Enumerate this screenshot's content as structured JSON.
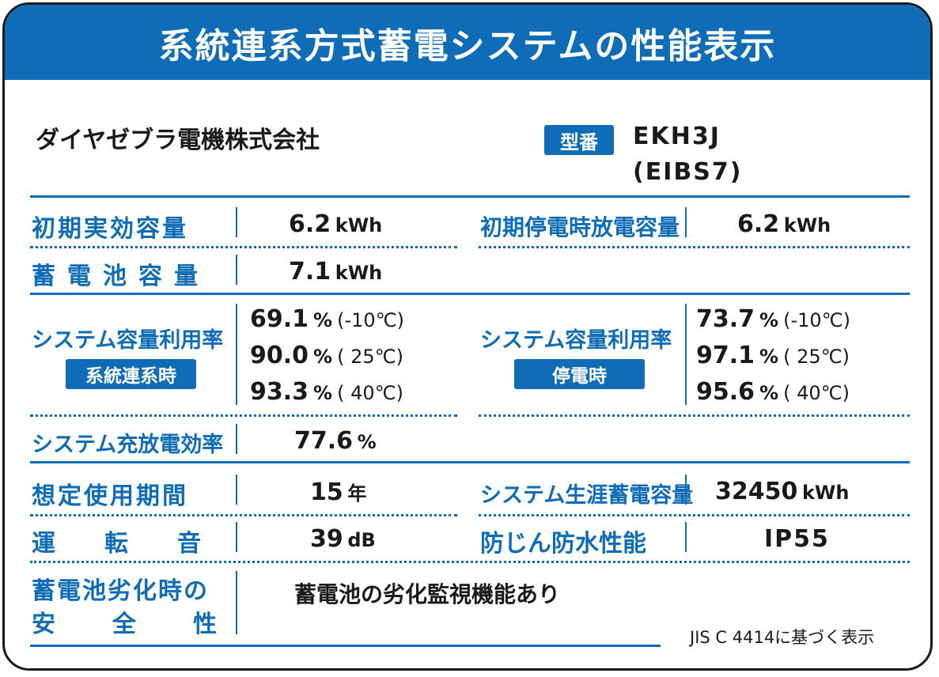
{
  "header": {
    "title": "系統連系方式蓄電システムの性能表示"
  },
  "company": "ダイヤゼブラ電機株式会社",
  "model": {
    "badge": "型番",
    "line1": "EKH3J",
    "line2": "(EIBS7)"
  },
  "rows": {
    "initial_capacity": {
      "label": "初期実効容量",
      "value": "6.2",
      "unit": "kWh"
    },
    "outage_capacity": {
      "label": "初期停電時放電容量",
      "value": "6.2",
      "unit": "kWh"
    },
    "battery_capacity": {
      "label": "蓄電池容量",
      "value": "7.1",
      "unit": "kWh"
    },
    "grid_utilization": {
      "label": "システム容量利用率",
      "badge": "系統連系時",
      "entries": [
        {
          "value": "69.1",
          "unit": "%",
          "temp": "(-10℃)"
        },
        {
          "value": "90.0",
          "unit": "%",
          "temp": "( 25℃)"
        },
        {
          "value": "93.3",
          "unit": "%",
          "temp": "( 40℃)"
        }
      ]
    },
    "outage_utilization": {
      "label": "システム容量利用率",
      "badge": "停電時",
      "entries": [
        {
          "value": "73.7",
          "unit": "%",
          "temp": "(-10℃)"
        },
        {
          "value": "97.1",
          "unit": "%",
          "temp": "( 25℃)"
        },
        {
          "value": "95.6",
          "unit": "%",
          "temp": "( 40℃)"
        }
      ]
    },
    "efficiency": {
      "label": "システム充放電効率",
      "value": "77.6",
      "unit": "%"
    },
    "lifetime": {
      "label": "想定使用期間",
      "value": "15",
      "unit": "年"
    },
    "lifetime_storage": {
      "label": "システム生涯蓄電容量",
      "value": "32450",
      "unit": "kWh"
    },
    "noise": {
      "label": "運転音",
      "value": "39",
      "unit": "dB"
    },
    "water": {
      "label": "防じん防水性能",
      "value": "IP55"
    },
    "safety": {
      "label_line1": "蓄電池劣化時の",
      "label_line2": "安全性",
      "value": "蓄電池の劣化監視機能あり"
    }
  },
  "footer": "JIS C 4414に基づく表示",
  "colors": {
    "accent": "#0f6db8",
    "text": "#1a1a1a"
  }
}
